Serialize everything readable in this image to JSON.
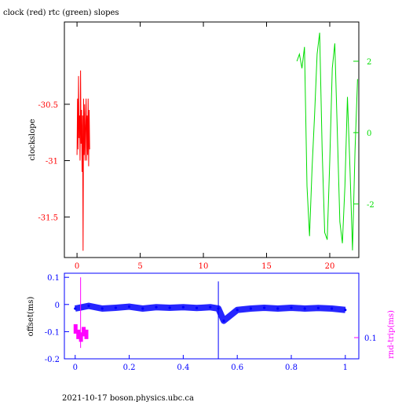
{
  "footer_text": "2021-10-17  boson.physics.ubc.ca",
  "colors": {
    "frame": "#000000",
    "clock": "#ff0000",
    "rtc": "#00dd00",
    "offset": "#0000ff",
    "rndtrip": "#ff00ff"
  },
  "chart_data": [
    {
      "type": "line",
      "title": "clock (red) rtc (green) slopes",
      "ylabel": "clockslope",
      "xlim": [
        -1,
        22.3
      ],
      "ylim": [
        -31.86,
        -29.77
      ],
      "y2lim": [
        -3.5,
        3.1
      ],
      "x_ticks": [
        0,
        5,
        10,
        15,
        20
      ],
      "y_ticks": [
        -30.5,
        -31,
        -31.5
      ],
      "y2_ticks": [
        2,
        0,
        -2
      ],
      "grid": false,
      "series": [
        {
          "axis": "left",
          "x": [
            0.0,
            0.04,
            0.08,
            0.12,
            0.16,
            0.2,
            0.24,
            0.28,
            0.32,
            0.36,
            0.4,
            0.44,
            0.48,
            0.52,
            0.56,
            0.6,
            0.64,
            0.68,
            0.72,
            0.76,
            0.8,
            0.84,
            0.88,
            0.92,
            0.96,
            1.0
          ],
          "values": [
            -30.95,
            -30.45,
            -30.9,
            -30.25,
            -30.8,
            -30.6,
            -31.0,
            -30.2,
            -30.85,
            -30.55,
            -31.1,
            -30.6,
            -31.8,
            -30.45,
            -30.95,
            -30.5,
            -31.0,
            -30.7,
            -30.45,
            -31.0,
            -30.6,
            -30.95,
            -30.45,
            -31.05,
            -30.55,
            -30.9
          ]
        },
        {
          "axis": "right",
          "x": [
            17.4,
            17.6,
            17.8,
            18.0,
            18.2,
            18.4,
            18.6,
            18.8,
            19.0,
            19.2,
            19.4,
            19.6,
            19.8,
            20.0,
            20.2,
            20.4,
            20.6,
            20.8,
            21.0,
            21.2,
            21.4,
            21.6,
            21.8,
            22.0,
            22.2
          ],
          "values": [
            2.0,
            2.2,
            1.8,
            2.4,
            -1.5,
            -2.9,
            -1.0,
            0.5,
            2.2,
            2.8,
            -0.5,
            -2.8,
            -3.0,
            -0.8,
            1.8,
            2.5,
            0.0,
            -2.5,
            -3.1,
            -1.5,
            1.0,
            -1.0,
            -3.3,
            -0.5,
            1.5
          ]
        }
      ]
    },
    {
      "type": "scatter",
      "ylabel": "offset(ms)",
      "y2label": "rnd-trip(ms)",
      "xlim": [
        -0.04,
        1.05
      ],
      "ylim": [
        -0.2,
        0.115
      ],
      "x_ticks": [
        0,
        0.2,
        0.4,
        0.6,
        0.8,
        1
      ],
      "y_ticks": [
        0.1,
        0,
        -0.1,
        -0.2
      ],
      "y2_ticks": [
        0.1
      ],
      "grid": false,
      "series": [
        {
          "x": [
            0.0,
            0.05,
            0.1,
            0.15,
            0.2,
            0.25,
            0.3,
            0.35,
            0.4,
            0.45,
            0.5,
            0.53,
            0.55,
            0.6,
            0.65,
            0.7,
            0.75,
            0.8,
            0.85,
            0.9,
            0.95,
            1.0
          ],
          "values": [
            -0.015,
            -0.005,
            -0.015,
            -0.012,
            -0.008,
            -0.015,
            -0.01,
            -0.012,
            -0.01,
            -0.013,
            -0.01,
            -0.015,
            -0.06,
            -0.02,
            -0.015,
            -0.012,
            -0.015,
            -0.012,
            -0.015,
            -0.013,
            -0.015,
            -0.02
          ]
        },
        {
          "x": [
            0.0,
            0.01,
            0.02,
            0.03,
            0.04
          ],
          "values": [
            -0.09,
            -0.11,
            -0.12,
            -0.1,
            -0.11
          ]
        }
      ]
    }
  ]
}
